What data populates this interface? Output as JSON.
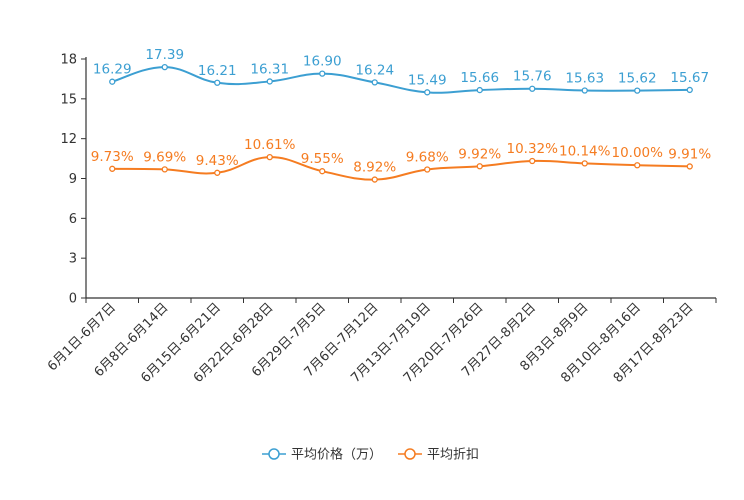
{
  "chart_data": {
    "type": "line",
    "title": "",
    "xlabel": "",
    "ylabel": "",
    "ylim": [
      0,
      18
    ],
    "yticks": [
      "0",
      "3",
      "6",
      "9",
      "12",
      "15",
      "18"
    ],
    "ytick_values": [
      0,
      3,
      6,
      9,
      12,
      15,
      18
    ],
    "categories": [
      "6月1日-6月7日",
      "6月8日-6月14日",
      "6月15日-6月21日",
      "6月22日-6月28日",
      "6月29日-7月5日",
      "7月6日-7月12日",
      "7月13日-7月19日",
      "7月20日-7月26日",
      "7月27日-8月2日",
      "8月3日-8月9日",
      "8月10日-8月16日",
      "8月17日-8月23日"
    ],
    "series": [
      {
        "name": "平均价格（万）",
        "color": "#3c9fd2",
        "values": [
          16.29,
          17.39,
          16.21,
          16.31,
          16.9,
          16.24,
          15.49,
          15.66,
          15.76,
          15.63,
          15.62,
          15.67
        ],
        "labels": [
          "16.29",
          "17.39",
          "16.21",
          "16.31",
          "16.90",
          "16.24",
          "15.49",
          "15.66",
          "15.76",
          "15.63",
          "15.62",
          "15.67"
        ]
      },
      {
        "name": "平均折扣",
        "color": "#f57c21",
        "values": [
          9.73,
          9.69,
          9.43,
          10.61,
          9.55,
          8.92,
          9.68,
          9.92,
          10.32,
          10.14,
          10.0,
          9.91
        ],
        "labels": [
          "9.73%",
          "9.69%",
          "9.43%",
          "10.61%",
          "9.55%",
          "8.92%",
          "9.68%",
          "9.92%",
          "10.32%",
          "10.14%",
          "10.00%",
          "9.91%"
        ]
      }
    ],
    "legend_position": "bottom-center"
  }
}
